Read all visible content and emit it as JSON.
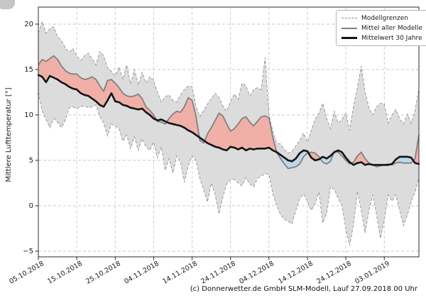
{
  "figure": {
    "y_axis_label": "Mittlere Lufttemperatur [°]",
    "caption": "(c) Donnerwetter.de GmbH SLM-Modell, Lauf 27.09.2018 00 Uhr",
    "legend": {
      "entries": [
        "Modellgrenzen",
        "Mittel aller Modelle",
        "Mittelwert 30 Jahre"
      ]
    }
  },
  "chart_data": {
    "type": "line",
    "title": "",
    "xlabel": "",
    "ylabel": "Mittlere Lufttemperatur [°]",
    "ylim": [
      -5.625,
      21.875
    ],
    "grid": true,
    "legend_position": "upper right",
    "x_unit": "Tage, taegliche Werte ab 05.10.2018",
    "x_tick_positions_days": [
      0,
      10,
      20,
      30,
      40,
      50,
      60,
      70,
      80,
      90
    ],
    "x_tick_labels": [
      "05.10.2018",
      "15.10.2018",
      "25.10.2018",
      "04.11.2018",
      "14.11.2018",
      "24.11.2018",
      "04.12.2018",
      "14.12.2018",
      "24.12.2018",
      "03.01.2019"
    ],
    "y_tick_values": [
      20,
      15,
      10,
      5,
      0,
      -5
    ],
    "y_tick_labels": [
      "20",
      "15",
      "10",
      "5",
      "0",
      "−5"
    ],
    "fills": {
      "model_range_band": "#dcdcdc",
      "mean_above_climate": "#f0b0a8",
      "mean_below_climate": "#bcd9ec"
    },
    "series": [
      {
        "name": "Modellgrenze oben",
        "legend": "Modellgrenzen",
        "style": "dashed",
        "color": "#9a9a9a",
        "values": [
          19.0,
          20.3,
          19.0,
          19.5,
          19.7,
          18.6,
          18.2,
          17.4,
          16.9,
          17.3,
          16.5,
          16.0,
          16.5,
          16.8,
          16.2,
          15.5,
          17.0,
          16.5,
          15.2,
          14.8,
          14.3,
          15.3,
          13.9,
          15.5,
          13.4,
          15.0,
          13.3,
          14.7,
          13.5,
          14.2,
          13.8,
          12.5,
          11.4,
          12.0,
          12.2,
          11.6,
          11.4,
          12.2,
          12.8,
          13.2,
          13.1,
          11.0,
          9.8,
          10.5,
          11.2,
          11.8,
          12.4,
          11.9,
          11.0,
          10.4,
          11.5,
          12.3,
          11.7,
          13.5,
          13.2,
          12.1,
          12.8,
          13.0,
          12.8,
          16.3,
          10.0,
          8.2,
          6.9,
          6.8,
          6.2,
          5.8,
          6.0,
          6.6,
          7.2,
          8.0,
          7.0,
          8.3,
          9.5,
          10.2,
          11.3,
          9.6,
          8.5,
          10.4,
          9.1,
          9.5,
          10.2,
          8.3,
          11.0,
          13.0,
          15.4,
          12.5,
          10.8,
          10.0,
          10.9,
          11.3,
          11.2,
          9.1,
          10.0,
          10.6,
          9.6,
          9.0,
          10.1,
          9.1,
          10.5,
          12.9
        ]
      },
      {
        "name": "Modellgrenze unten",
        "legend": "Modellgrenzen",
        "style": "dashed",
        "color": "#9a9a9a",
        "values": [
          12.5,
          10.4,
          9.5,
          8.6,
          9.6,
          9.2,
          8.6,
          9.4,
          10.8,
          10.9,
          10.7,
          10.9,
          11.0,
          10.8,
          10.9,
          11.1,
          9.8,
          9.1,
          7.7,
          9.0,
          8.8,
          8.5,
          7.1,
          7.8,
          6.3,
          7.6,
          6.1,
          7.4,
          6.5,
          6.1,
          7.0,
          5.3,
          6.5,
          3.9,
          5.2,
          3.6,
          5.5,
          4.8,
          2.6,
          4.4,
          5.5,
          5.0,
          3.0,
          1.8,
          0.4,
          2.5,
          1.2,
          -0.9,
          1.0,
          2.4,
          2.9,
          2.9,
          2.5,
          2.2,
          3.1,
          2.4,
          2.1,
          3.0,
          3.3,
          3.5,
          3.5,
          1.3,
          0.0,
          -1.0,
          -1.5,
          -1.7,
          -2.0,
          -0.5,
          0.8,
          1.3,
          0.5,
          -0.5,
          0.2,
          1.5,
          -1.9,
          -0.8,
          2.1,
          1.8,
          0.8,
          0.0,
          -2.5,
          -4.4,
          -2.0,
          1.6,
          -0.5,
          -3.0,
          -0.5,
          1.2,
          -1.0,
          -3.6,
          -1.5,
          1.2,
          0.5,
          1.2,
          -0.5,
          -2.2,
          -1.0,
          0.5,
          1.5,
          3.1
        ]
      },
      {
        "name": "Mittel aller Modelle",
        "legend": "Mittel aller Modelle",
        "style": "solid",
        "color": "#808080",
        "values": [
          15.5,
          16.1,
          15.9,
          16.2,
          16.5,
          16.1,
          15.4,
          14.9,
          14.6,
          14.5,
          14.5,
          14.1,
          13.9,
          14.0,
          14.2,
          13.9,
          13.2,
          12.6,
          13.8,
          13.9,
          13.5,
          13.0,
          12.4,
          12.1,
          12.0,
          12.1,
          12.3,
          11.8,
          10.9,
          10.5,
          10.0,
          9.3,
          9.2,
          9.0,
          9.6,
          10.1,
          10.4,
          10.3,
          10.9,
          11.9,
          11.6,
          9.9,
          7.2,
          6.9,
          7.9,
          8.6,
          9.4,
          10.2,
          9.9,
          9.0,
          8.2,
          8.5,
          9.0,
          9.6,
          9.8,
          9.2,
          8.8,
          9.3,
          9.8,
          9.9,
          9.7,
          7.5,
          5.9,
          5.2,
          4.6,
          4.1,
          4.2,
          4.3,
          4.6,
          5.4,
          5.8,
          5.9,
          5.8,
          5.4,
          4.8,
          4.6,
          4.9,
          6.0,
          5.9,
          5.5,
          5.0,
          4.6,
          4.8,
          5.5,
          5.9,
          5.2,
          4.7,
          4.5,
          4.3,
          4.4,
          4.5,
          4.6,
          4.5,
          4.7,
          4.8,
          4.7,
          4.7,
          4.7,
          5.2,
          7.8
        ]
      },
      {
        "name": "Mittelwert 30 Jahre",
        "legend": "Mittelwert 30 Jahre",
        "style": "solid-bold",
        "color": "#141414",
        "values": [
          14.4,
          14.2,
          13.6,
          14.3,
          14.1,
          13.9,
          13.6,
          13.4,
          13.1,
          12.9,
          12.8,
          12.4,
          12.2,
          12.1,
          11.8,
          11.5,
          11.1,
          10.9,
          11.6,
          12.4,
          11.5,
          11.4,
          11.1,
          11.0,
          10.8,
          10.7,
          10.6,
          10.7,
          10.3,
          10.0,
          9.6,
          9.4,
          9.5,
          9.3,
          9.1,
          9.0,
          8.9,
          8.8,
          8.6,
          8.3,
          8.1,
          7.8,
          7.5,
          7.2,
          6.9,
          6.7,
          6.5,
          6.4,
          6.2,
          6.1,
          6.5,
          6.4,
          6.2,
          6.4,
          6.1,
          6.3,
          6.2,
          6.3,
          6.3,
          6.3,
          6.4,
          6.1,
          5.9,
          5.6,
          5.3,
          5.0,
          4.9,
          5.2,
          5.8,
          6.1,
          6.0,
          5.3,
          5.0,
          5.1,
          5.4,
          5.2,
          5.5,
          5.9,
          6.1,
          5.9,
          5.3,
          4.8,
          4.5,
          4.7,
          4.8,
          4.5,
          4.6,
          4.5,
          4.5,
          4.5,
          4.5,
          4.5,
          4.6,
          5.1,
          5.4,
          5.4,
          5.4,
          5.3,
          4.7,
          4.6
        ]
      }
    ],
    "caption": "(c) Donnerwetter.de GmbH SLM-Modell, Lauf 27.09.2018 00 Uhr"
  }
}
